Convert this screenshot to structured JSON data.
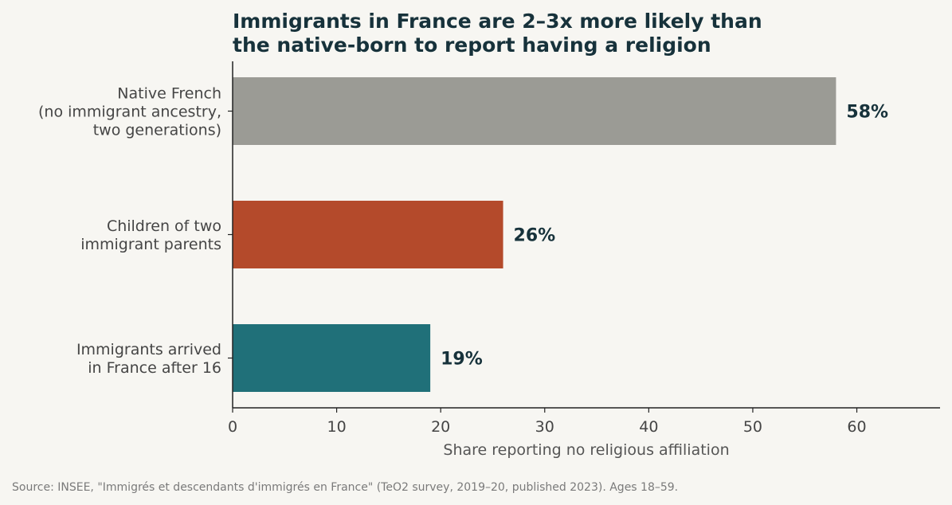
{
  "chart_data": {
    "type": "bar",
    "orientation": "horizontal",
    "title_lines": [
      "Immigrants in France are 2–3x more likely than",
      "the native-born to report having a religion"
    ],
    "categories": [
      [
        "Native French",
        "(no immigrant ancestry,",
        "two generations)"
      ],
      [
        "Children of two",
        "immigrant parents"
      ],
      [
        "Immigrants arrived",
        "in France after 16"
      ]
    ],
    "values": [
      58,
      26,
      19
    ],
    "value_labels": [
      "58%",
      "26%",
      "19%"
    ],
    "colors": [
      "#9b9b95",
      "#b44a2b",
      "#207079"
    ],
    "xlabel": "Share reporting no religious affiliation",
    "xlim": [
      0,
      68
    ],
    "xticks": [
      0,
      10,
      20,
      30,
      40,
      50,
      60
    ],
    "grid": false,
    "source": "Source: INSEE, \"Immigrés et descendants d'immigrés en France\" (TeO2 survey, 2019–20, published 2023). Ages 18–59."
  }
}
